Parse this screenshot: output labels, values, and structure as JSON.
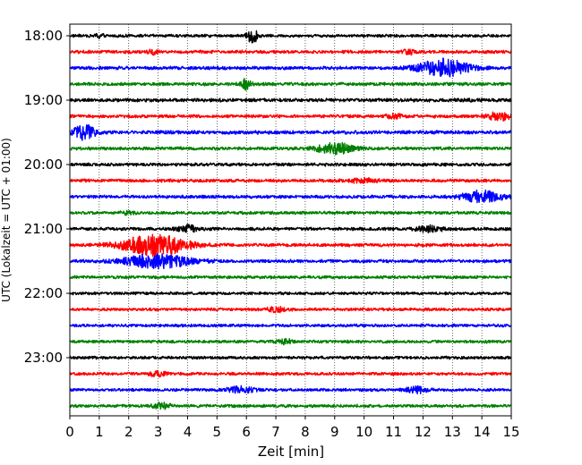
{
  "chart_data": {
    "type": "line",
    "xlabel": "Zeit  [min]",
    "ylabel": "UTC (Lokalzeit = UTC + 01:00)",
    "xlim": [
      0,
      15
    ],
    "x_ticks": [
      0,
      1,
      2,
      3,
      4,
      5,
      6,
      7,
      8,
      9,
      10,
      11,
      12,
      13,
      14,
      15
    ],
    "x_tick_labels": [
      "0",
      "1",
      "2",
      "3",
      "4",
      "5",
      "6",
      "7",
      "8",
      "9",
      "10",
      "11",
      "12",
      "13",
      "14",
      "15"
    ],
    "x_grid": true,
    "y_tick_labels": [
      "18:00",
      "19:00",
      "20:00",
      "21:00",
      "22:00",
      "23:00"
    ],
    "y_tick_rows": [
      0,
      4,
      8,
      12,
      16,
      20
    ],
    "row_minutes": 15,
    "start_time": "18:00",
    "color_cycle": [
      "#000000",
      "#ff0000",
      "#0000ff",
      "#008000"
    ],
    "rows": [
      {
        "start": "18:00",
        "color": "#000000",
        "noise": 0.22,
        "events": [
          {
            "t": 6.2,
            "amp": 1.25,
            "width": 0.12
          },
          {
            "t": 1.0,
            "amp": 0.4,
            "width": 0.1
          }
        ]
      },
      {
        "start": "18:15",
        "color": "#ff0000",
        "noise": 0.24,
        "events": [
          {
            "t": 2.8,
            "amp": 0.4,
            "width": 0.1
          },
          {
            "t": 11.5,
            "amp": 0.35,
            "width": 0.15
          }
        ]
      },
      {
        "start": "18:30",
        "color": "#0000ff",
        "noise": 0.25,
        "events": [
          {
            "t": 12.7,
            "amp": 1.5,
            "width": 0.6
          }
        ]
      },
      {
        "start": "18:45",
        "color": "#008000",
        "noise": 0.24,
        "events": [
          {
            "t": 6.0,
            "amp": 0.9,
            "width": 0.12
          }
        ]
      },
      {
        "start": "19:00",
        "color": "#000000",
        "noise": 0.26,
        "events": []
      },
      {
        "start": "19:15",
        "color": "#ff0000",
        "noise": 0.24,
        "events": [
          {
            "t": 14.6,
            "amp": 0.7,
            "width": 0.3
          },
          {
            "t": 11.0,
            "amp": 0.3,
            "width": 0.2
          }
        ]
      },
      {
        "start": "19:30",
        "color": "#0000ff",
        "noise": 0.27,
        "events": [
          {
            "t": 0.5,
            "amp": 1.2,
            "width": 0.25
          }
        ]
      },
      {
        "start": "19:45",
        "color": "#008000",
        "noise": 0.24,
        "events": [
          {
            "t": 9.0,
            "amp": 0.85,
            "width": 0.45
          }
        ]
      },
      {
        "start": "20:00",
        "color": "#000000",
        "noise": 0.24,
        "events": []
      },
      {
        "start": "20:15",
        "color": "#ff0000",
        "noise": 0.24,
        "events": [
          {
            "t": 10.0,
            "amp": 0.35,
            "width": 0.3
          }
        ]
      },
      {
        "start": "20:30",
        "color": "#0000ff",
        "noise": 0.24,
        "events": [
          {
            "t": 14.0,
            "amp": 1.0,
            "width": 0.45
          }
        ]
      },
      {
        "start": "20:45",
        "color": "#008000",
        "noise": 0.23,
        "events": [
          {
            "t": 2.0,
            "amp": 0.3,
            "width": 0.15
          }
        ]
      },
      {
        "start": "21:00",
        "color": "#000000",
        "noise": 0.24,
        "events": [
          {
            "t": 4.0,
            "amp": 0.75,
            "width": 0.2
          },
          {
            "t": 12.2,
            "amp": 0.5,
            "width": 0.3
          }
        ]
      },
      {
        "start": "21:15",
        "color": "#ff0000",
        "noise": 0.24,
        "events": [
          {
            "t": 2.9,
            "amp": 1.85,
            "width": 0.75
          }
        ]
      },
      {
        "start": "21:30",
        "color": "#0000ff",
        "noise": 0.24,
        "events": [
          {
            "t": 3.0,
            "amp": 1.1,
            "width": 0.8
          }
        ]
      },
      {
        "start": "21:45",
        "color": "#008000",
        "noise": 0.22,
        "events": []
      },
      {
        "start": "22:00",
        "color": "#000000",
        "noise": 0.21,
        "events": []
      },
      {
        "start": "22:15",
        "color": "#ff0000",
        "noise": 0.22,
        "events": [
          {
            "t": 7.0,
            "amp": 0.4,
            "width": 0.25
          }
        ]
      },
      {
        "start": "22:30",
        "color": "#0000ff",
        "noise": 0.22,
        "events": []
      },
      {
        "start": "22:45",
        "color": "#008000",
        "noise": 0.22,
        "events": [
          {
            "t": 7.3,
            "amp": 0.35,
            "width": 0.2
          }
        ]
      },
      {
        "start": "23:00",
        "color": "#000000",
        "noise": 0.22,
        "events": []
      },
      {
        "start": "23:15",
        "color": "#ff0000",
        "noise": 0.22,
        "events": [
          {
            "t": 3.0,
            "amp": 0.35,
            "width": 0.2
          }
        ]
      },
      {
        "start": "23:30",
        "color": "#0000ff",
        "noise": 0.22,
        "events": [
          {
            "t": 5.8,
            "amp": 0.5,
            "width": 0.3
          },
          {
            "t": 11.8,
            "amp": 0.55,
            "width": 0.25
          }
        ]
      },
      {
        "start": "23:45",
        "color": "#008000",
        "noise": 0.22,
        "events": [
          {
            "t": 3.1,
            "amp": 0.5,
            "width": 0.2
          }
        ]
      }
    ]
  }
}
